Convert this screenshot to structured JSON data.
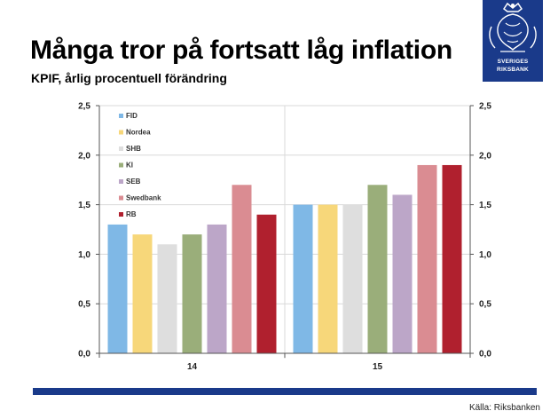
{
  "header": {
    "title": "Många tror på fortsatt låg inflation",
    "subtitle": "KPIF, årlig procentuell förändring"
  },
  "logo": {
    "line1": "SVERIGES",
    "line2": "RIKSBANK",
    "color": "#1a3a8a"
  },
  "footer": {
    "source": "Källa: Riksbanken",
    "rule_color": "#1a3a8a"
  },
  "chart_data": {
    "type": "bar",
    "categories": [
      "14",
      "15"
    ],
    "series": [
      {
        "name": "FID",
        "color": "#7fb8e6",
        "values": [
          1.3,
          1.5
        ]
      },
      {
        "name": "Nordea",
        "color": "#f7d77a",
        "values": [
          1.2,
          1.5
        ]
      },
      {
        "name": "SHB",
        "color": "#dedede",
        "values": [
          1.1,
          1.5
        ]
      },
      {
        "name": "KI",
        "color": "#9aae7a",
        "values": [
          1.2,
          1.7
        ]
      },
      {
        "name": "SEB",
        "color": "#bca6c8",
        "values": [
          1.3,
          1.6
        ]
      },
      {
        "name": "Swedbank",
        "color": "#da8c92",
        "values": [
          1.7,
          1.9
        ]
      },
      {
        "name": "RB",
        "color": "#b0202e",
        "values": [
          1.4,
          1.9
        ]
      }
    ],
    "ylim": [
      0,
      2.5
    ],
    "yticks": [
      "0,0",
      "0,5",
      "1,0",
      "1,5",
      "2,0",
      "2,5"
    ],
    "tick_values": [
      0,
      0.5,
      1.0,
      1.5,
      2.0,
      2.5
    ],
    "grid": true,
    "legend_position": "top-left",
    "dual_y_axis": true
  }
}
